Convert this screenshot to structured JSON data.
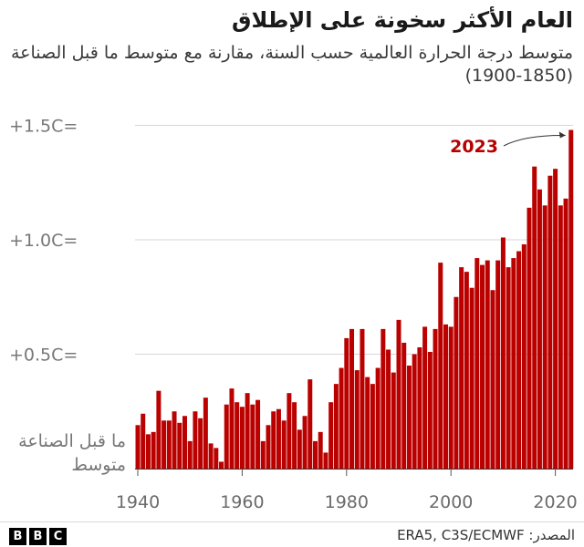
{
  "header": {
    "title": "العام الأكثر سخونة على الإطلاق",
    "subtitle": "متوسط درجة الحرارة العالمية حسب السنة، مقارنة مع متوسط ما قبل الصناعة (1850-1900)"
  },
  "footer": {
    "logo_letters": [
      "B",
      "B",
      "C"
    ],
    "source": "المصدر: ERA5, C3S/ECMWF"
  },
  "colors": {
    "bar": "#bb0000",
    "annotation": "#b80000",
    "grid": "#d6d6d6",
    "tick_text": "#777777"
  },
  "chart_data": {
    "type": "bar",
    "title": "العام الأكثر سخونة على الإطلاق",
    "subtitle": "متوسط درجة الحرارة العالمية حسب السنة، مقارنة مع متوسط ما قبل الصناعة (1850-1900)",
    "xlabel": "",
    "ylabel": "",
    "ylim": [
      0.0,
      1.52
    ],
    "xlim": [
      1940,
      2023
    ],
    "grid": true,
    "x": [
      1940,
      1941,
      1942,
      1943,
      1944,
      1945,
      1946,
      1947,
      1948,
      1949,
      1950,
      1951,
      1952,
      1953,
      1954,
      1955,
      1956,
      1957,
      1958,
      1959,
      1960,
      1961,
      1962,
      1963,
      1964,
      1965,
      1966,
      1967,
      1968,
      1969,
      1970,
      1971,
      1972,
      1973,
      1974,
      1975,
      1976,
      1977,
      1978,
      1979,
      1980,
      1981,
      1982,
      1983,
      1984,
      1985,
      1986,
      1987,
      1988,
      1989,
      1990,
      1991,
      1992,
      1993,
      1994,
      1995,
      1996,
      1997,
      1998,
      1999,
      2000,
      2001,
      2002,
      2003,
      2004,
      2005,
      2006,
      2007,
      2008,
      2009,
      2010,
      2011,
      2012,
      2013,
      2014,
      2015,
      2016,
      2017,
      2018,
      2019,
      2020,
      2021,
      2022,
      2023
    ],
    "values": [
      0.19,
      0.24,
      0.15,
      0.16,
      0.34,
      0.21,
      0.21,
      0.25,
      0.2,
      0.23,
      0.12,
      0.25,
      0.22,
      0.31,
      0.11,
      0.09,
      0.03,
      0.28,
      0.35,
      0.29,
      0.27,
      0.33,
      0.28,
      0.3,
      0.12,
      0.19,
      0.25,
      0.26,
      0.21,
      0.33,
      0.29,
      0.17,
      0.23,
      0.39,
      0.12,
      0.16,
      0.07,
      0.29,
      0.37,
      0.44,
      0.57,
      0.61,
      0.43,
      0.61,
      0.4,
      0.37,
      0.44,
      0.61,
      0.52,
      0.42,
      0.65,
      0.55,
      0.45,
      0.5,
      0.53,
      0.62,
      0.51,
      0.61,
      0.9,
      0.63,
      0.62,
      0.75,
      0.88,
      0.86,
      0.79,
      0.92,
      0.89,
      0.91,
      0.78,
      0.91,
      1.01,
      0.88,
      0.92,
      0.95,
      0.98,
      1.14,
      1.32,
      1.22,
      1.15,
      1.28,
      1.31,
      1.15,
      1.18,
      1.48
    ],
    "y_ticks": [
      {
        "value": 0.5,
        "label": "+0.5C="
      },
      {
        "value": 1.0,
        "label": "+1.0C="
      },
      {
        "value": 1.5,
        "label": "+1.5C="
      }
    ],
    "baseline_label": [
      "ما قبل الصناعة",
      "متوسط"
    ],
    "x_ticks": [
      1940,
      1960,
      1980,
      2000,
      2020
    ],
    "annotations": [
      {
        "text": "2023",
        "target_year": 2023
      }
    ]
  }
}
